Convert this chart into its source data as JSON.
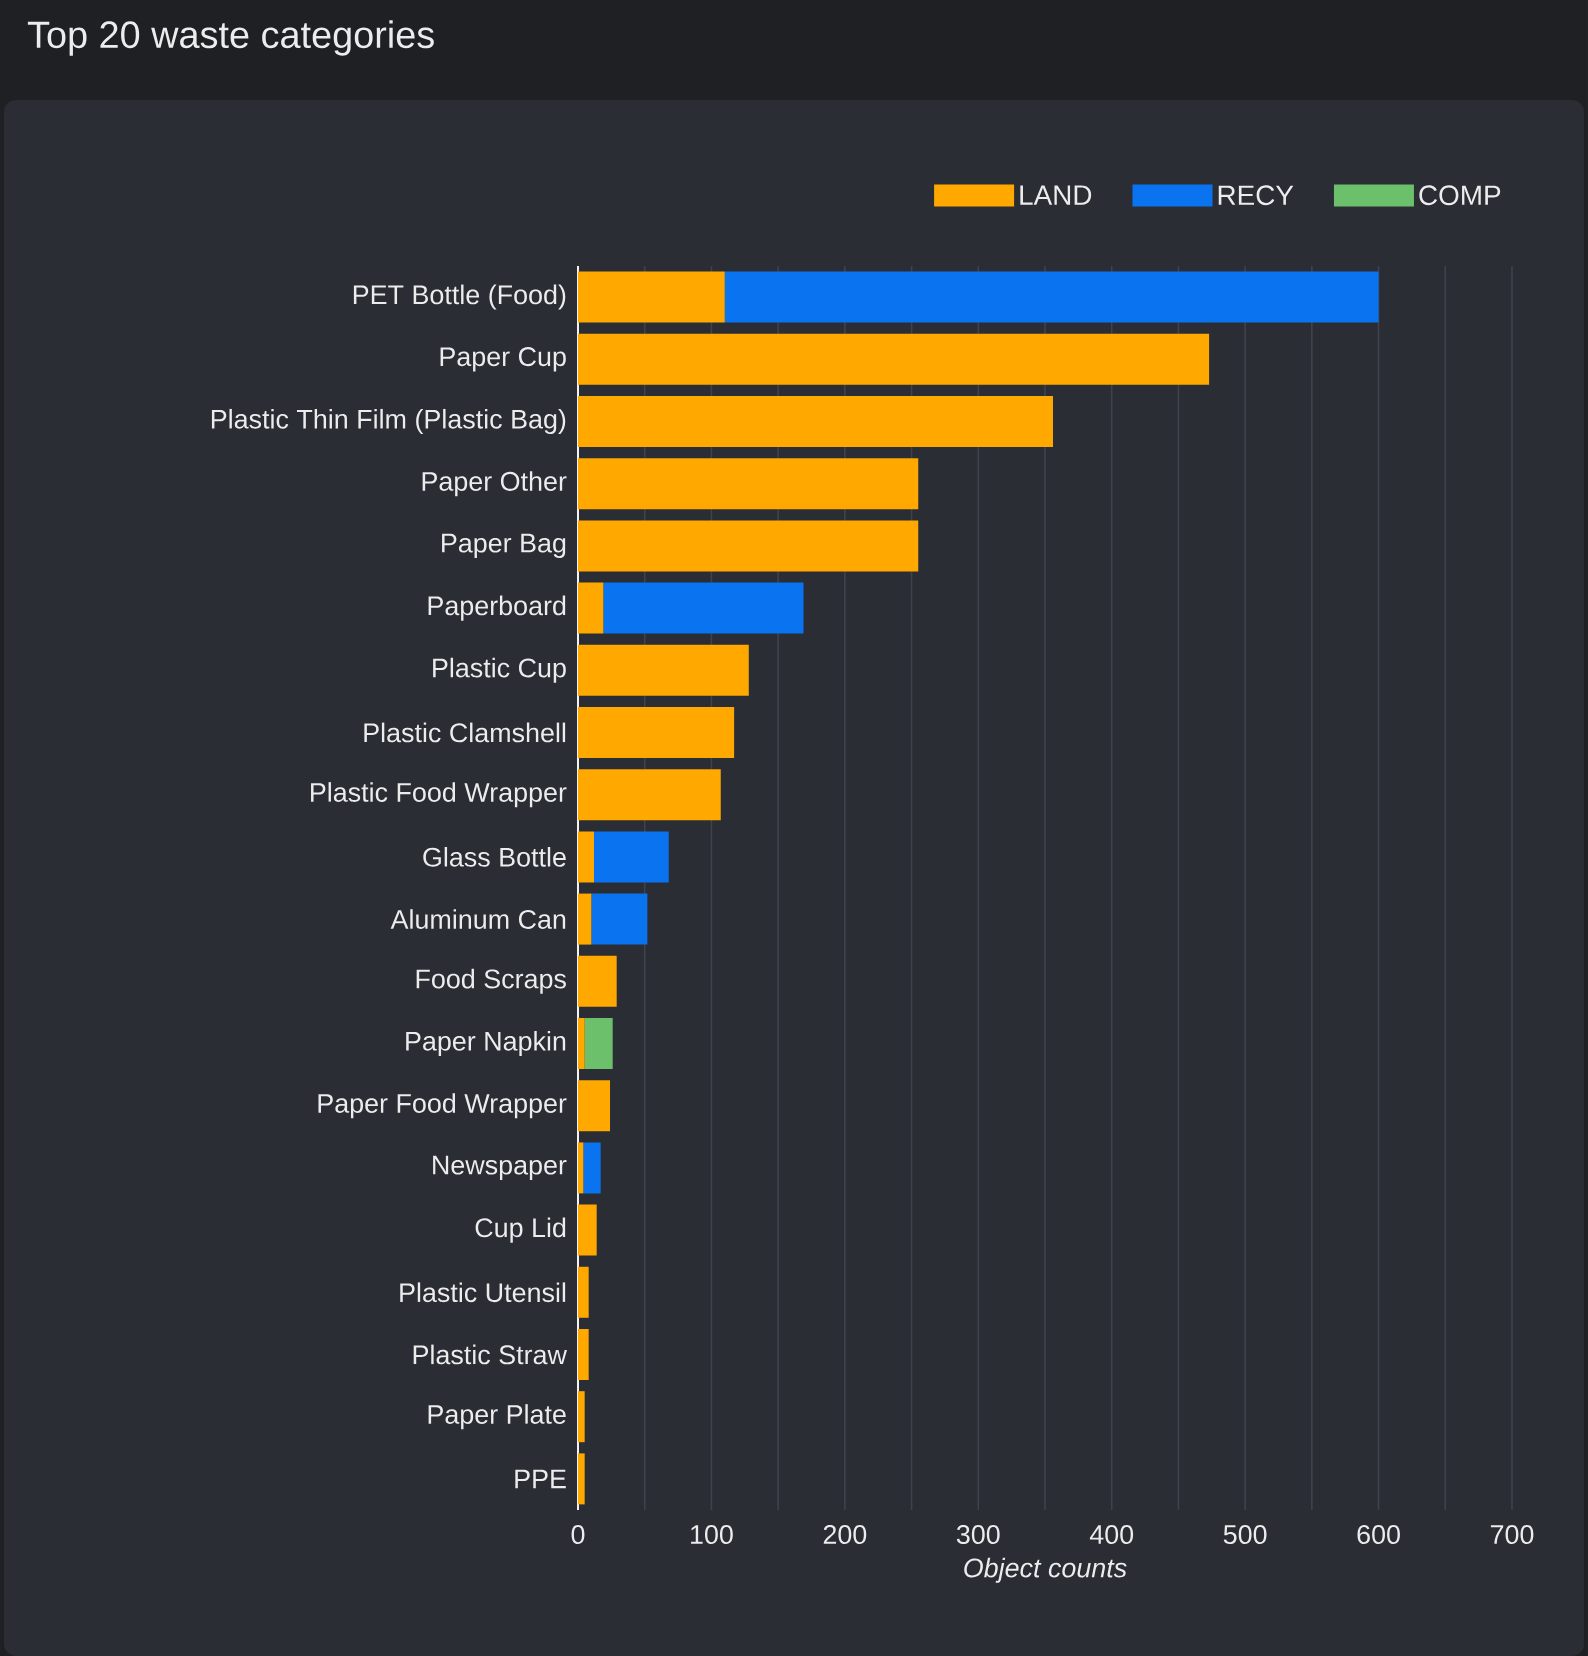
{
  "chart_data": {
    "type": "bar",
    "orientation": "horizontal",
    "stacked": true,
    "title": "Top 20 waste categories",
    "xlabel": "Object counts",
    "categories": [
      "PET Bottle (Food)",
      "Paper Cup",
      "Plastic Thin Film (Plastic Bag)",
      "Paper Other",
      "Paper Bag",
      "Paperboard",
      "Plastic Cup",
      "Plastic Clamshell",
      "Plastic Food Wrapper",
      "Glass Bottle",
      "Aluminum Can",
      "Food Scraps",
      "Paper Napkin",
      "Paper Food Wrapper",
      "Newspaper",
      "Cup Lid",
      "Plastic Utensil",
      "Plastic Straw",
      "Paper Plate",
      "PPE"
    ],
    "series": [
      {
        "name": "LAND",
        "color": "#ffa800",
        "values": [
          110,
          473,
          356,
          255,
          255,
          19,
          128,
          117,
          107,
          12,
          10,
          29,
          5,
          24,
          4,
          14,
          8,
          8,
          5,
          5
        ]
      },
      {
        "name": "RECY",
        "color": "#0a74f0",
        "values": [
          490,
          null,
          null,
          null,
          null,
          150,
          null,
          null,
          null,
          56,
          42,
          null,
          null,
          null,
          13,
          null,
          null,
          null,
          null,
          null
        ]
      },
      {
        "name": "COMP",
        "color": "#6cc06c",
        "values": [
          null,
          null,
          null,
          null,
          null,
          null,
          null,
          null,
          null,
          null,
          null,
          null,
          21,
          null,
          null,
          null,
          null,
          null,
          null,
          null
        ]
      }
    ],
    "xlim": [
      0,
      700
    ],
    "xticks": [
      0,
      100,
      200,
      300,
      400,
      500,
      600,
      700
    ],
    "grid": "x",
    "legend": "top right"
  }
}
